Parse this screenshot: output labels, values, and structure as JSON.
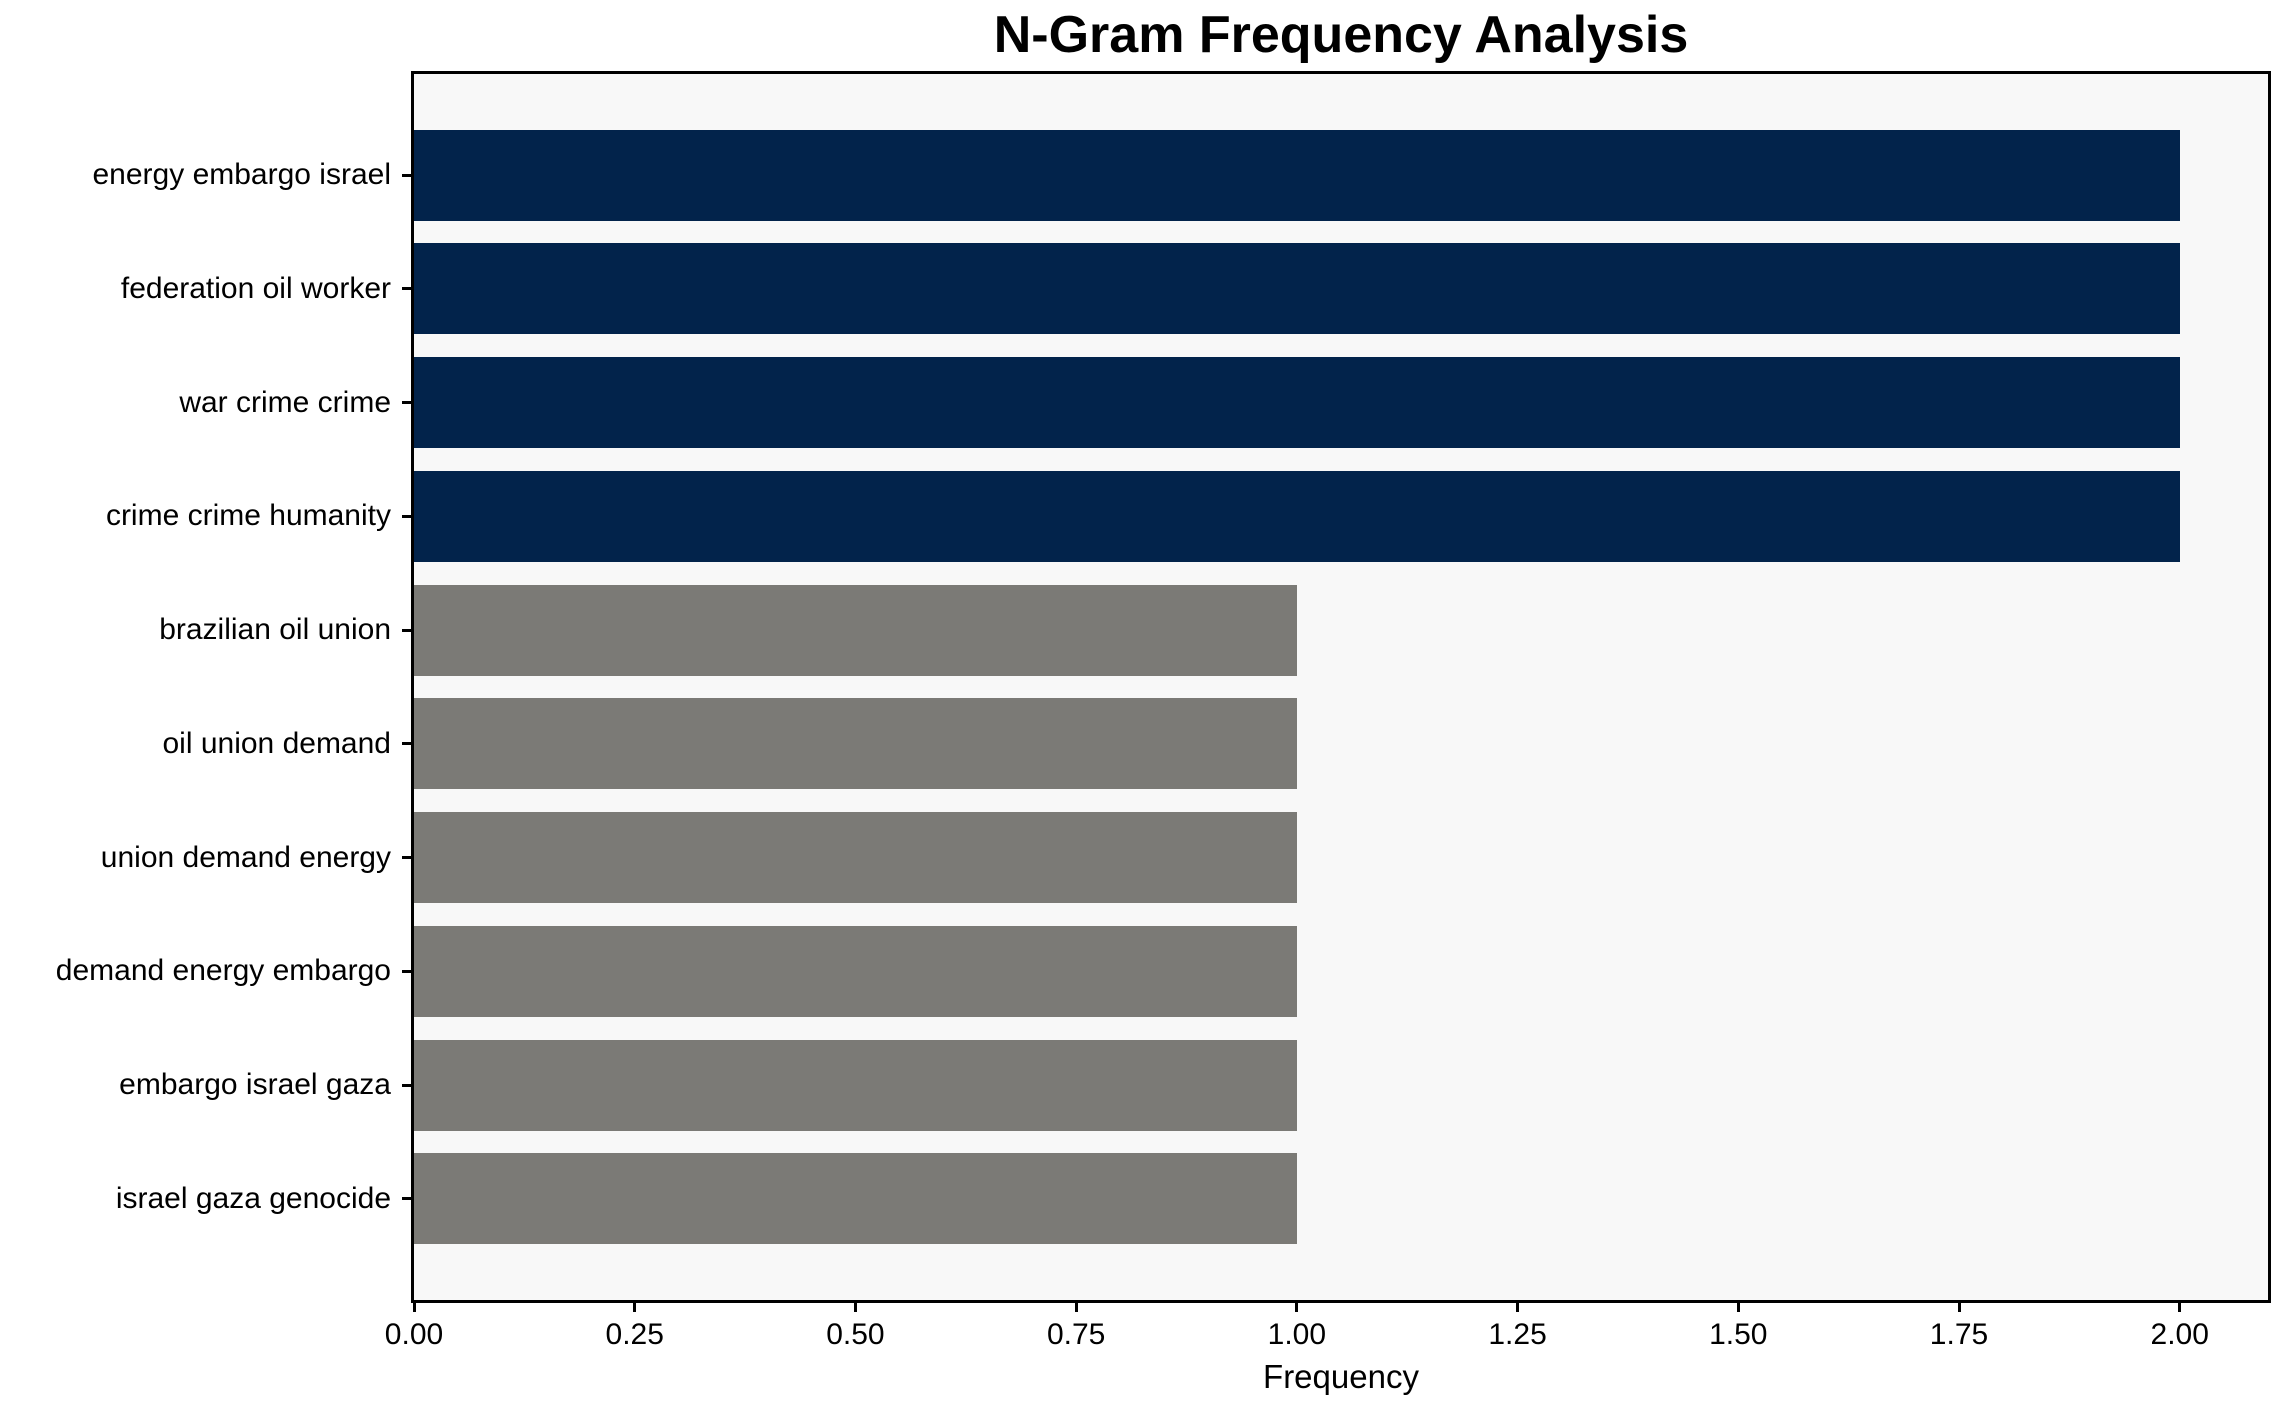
{
  "figure": {
    "title": "N-Gram Frequency Analysis",
    "xlabel": "Frequency"
  },
  "colors": {
    "navy": "#02234B",
    "gray": "#7B7A76",
    "plot_background": "#F8F8F8",
    "figure_background": "#FFFFFF",
    "axis": "#000000",
    "text": "#000000"
  },
  "chart_data": {
    "type": "bar",
    "orientation": "horizontal",
    "title": "N-Gram Frequency Analysis",
    "xlabel": "Frequency",
    "ylabel": "",
    "categories": [
      "energy embargo israel",
      "federation oil worker",
      "war crime crime",
      "crime crime humanity",
      "brazilian oil union",
      "oil union demand",
      "union demand energy",
      "demand energy embargo",
      "embargo israel gaza",
      "israel gaza genocide"
    ],
    "values": [
      2,
      2,
      2,
      2,
      1,
      1,
      1,
      1,
      1,
      1
    ],
    "bar_colors": [
      "#02234B",
      "#02234B",
      "#02234B",
      "#02234B",
      "#7B7A76",
      "#7B7A76",
      "#7B7A76",
      "#7B7A76",
      "#7B7A76",
      "#7B7A76"
    ],
    "xlim": [
      0,
      2.1
    ],
    "xticks": [
      0,
      0.25,
      0.5,
      0.75,
      1.0,
      1.25,
      1.5,
      1.75,
      2.0
    ],
    "xtick_labels": [
      "0.00",
      "0.25",
      "0.50",
      "0.75",
      "1.00",
      "1.25",
      "1.50",
      "1.75",
      "2.00"
    ],
    "bar_height_fraction": 0.8,
    "grid": false,
    "legend_position": "none"
  }
}
